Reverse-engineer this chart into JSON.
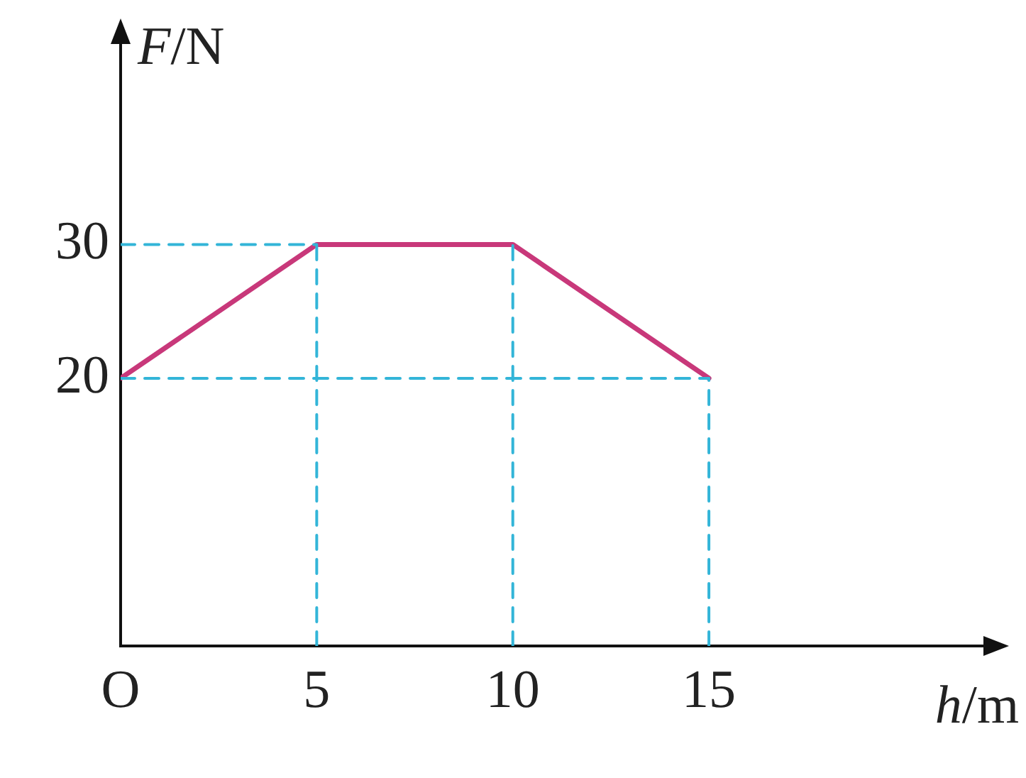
{
  "chart_data": {
    "type": "line",
    "xlabel": "h/m",
    "ylabel": "F/N",
    "xlim": [
      0,
      22
    ],
    "ylim": [
      0,
      45
    ],
    "xticks": [
      {
        "value": 0,
        "label": "O"
      },
      5,
      10,
      15
    ],
    "yticks": [
      20,
      30
    ],
    "grid": false,
    "legend": false,
    "marker": "none",
    "series": [
      {
        "color": "#33b5d8",
        "line_style": "dashed",
        "x": [
          0,
          15
        ],
        "values": [
          20,
          20
        ]
      },
      {
        "color": "#33b5d8",
        "line_style": "dashed",
        "x": [
          0,
          5
        ],
        "values": [
          30,
          30
        ]
      },
      {
        "color": "#33b5d8",
        "line_style": "dashed",
        "x": [
          5,
          5
        ],
        "values": [
          0,
          30
        ]
      },
      {
        "color": "#33b5d8",
        "line_style": "dashed",
        "x": [
          10,
          10
        ],
        "values": [
          0,
          30
        ]
      },
      {
        "color": "#33b5d8",
        "line_style": "dashed",
        "x": [
          15,
          15
        ],
        "values": [
          0,
          20
        ]
      },
      {
        "color": "#c8387a",
        "line_style": "solid",
        "x": [
          0,
          5,
          10,
          15
        ],
        "values": [
          20,
          30,
          30,
          20
        ]
      }
    ]
  }
}
